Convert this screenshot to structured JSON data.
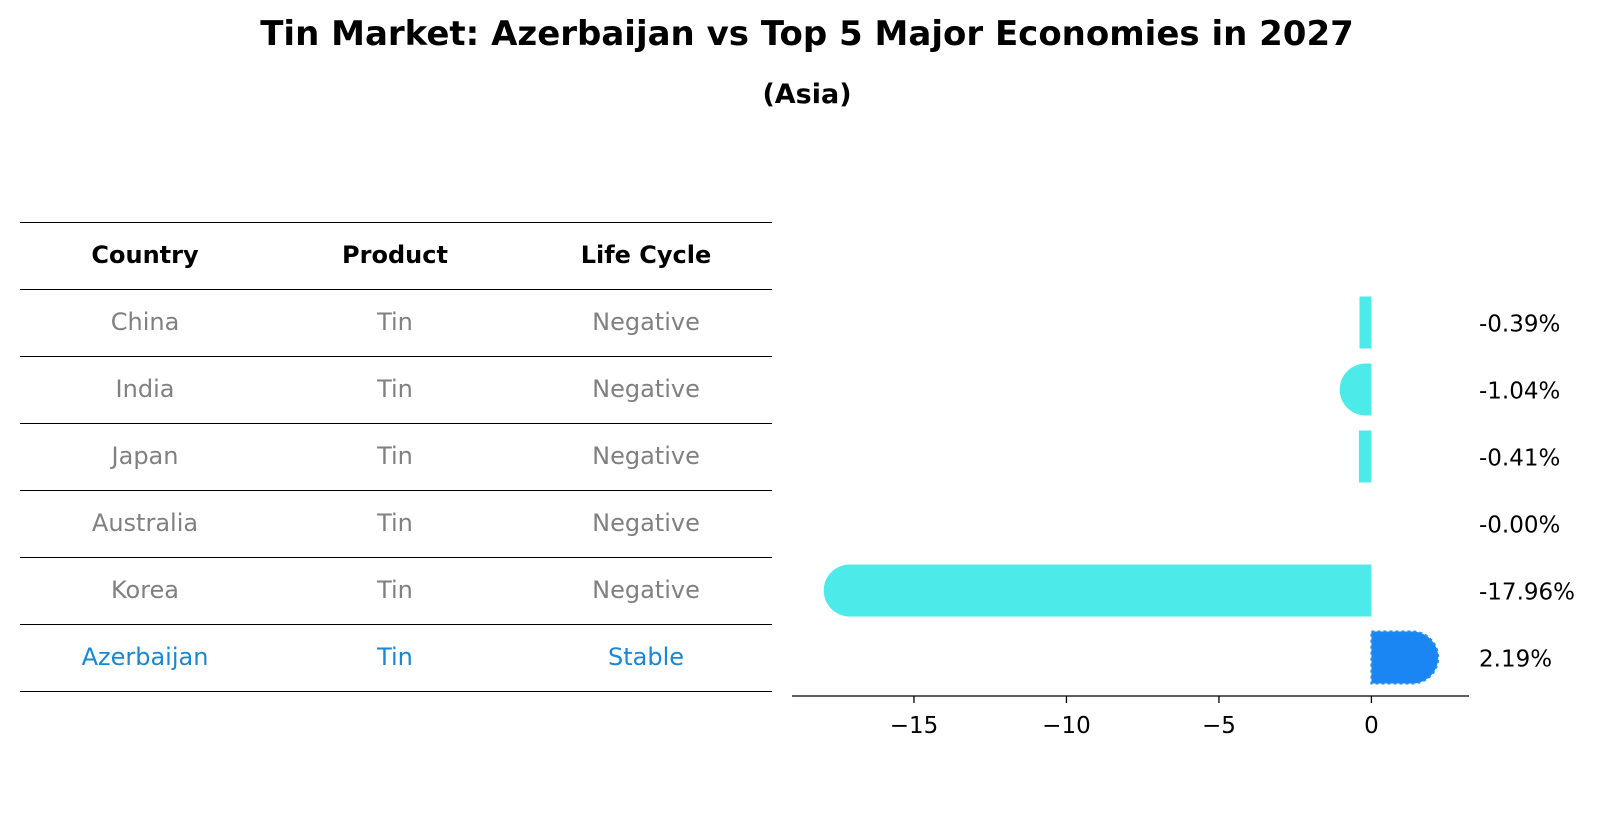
{
  "title": "Tin Market: Azerbaijan vs Top 5 Major Economies in 2027",
  "subtitle": "(Asia)",
  "table": {
    "headers": [
      "Country",
      "Product",
      "Life Cycle"
    ],
    "rows": [
      [
        "China",
        "Tin",
        "Negative"
      ],
      [
        "India",
        "Tin",
        "Negative"
      ],
      [
        "Japan",
        "Tin",
        "Negative"
      ],
      [
        "Australia",
        "Tin",
        "Negative"
      ],
      [
        "Korea",
        "Tin",
        "Negative"
      ],
      [
        "Azerbaijan",
        "Tin",
        "Stable"
      ]
    ],
    "highlight_row": 5
  },
  "colors": {
    "negative_bar": "#4deaea",
    "highlight_bar": "#1a86f4",
    "muted_text": "#808080",
    "highlight_text": "#1a86d6"
  },
  "chart_data": {
    "type": "bar",
    "orientation": "horizontal",
    "categories": [
      "China",
      "India",
      "Japan",
      "Australia",
      "Korea",
      "Azerbaijan"
    ],
    "values": [
      -0.39,
      -1.04,
      -0.41,
      -0.0,
      -17.96,
      2.19
    ],
    "value_labels": [
      "-0.39%",
      "-1.04%",
      "-0.41%",
      "-0.00%",
      "-17.96%",
      "2.19%"
    ],
    "xlim": [
      -19.0,
      3.2
    ],
    "xticks": [
      -15,
      -10,
      -5,
      0
    ],
    "xtick_labels": [
      "−15",
      "−10",
      "−5",
      "0"
    ],
    "grid": false
  }
}
